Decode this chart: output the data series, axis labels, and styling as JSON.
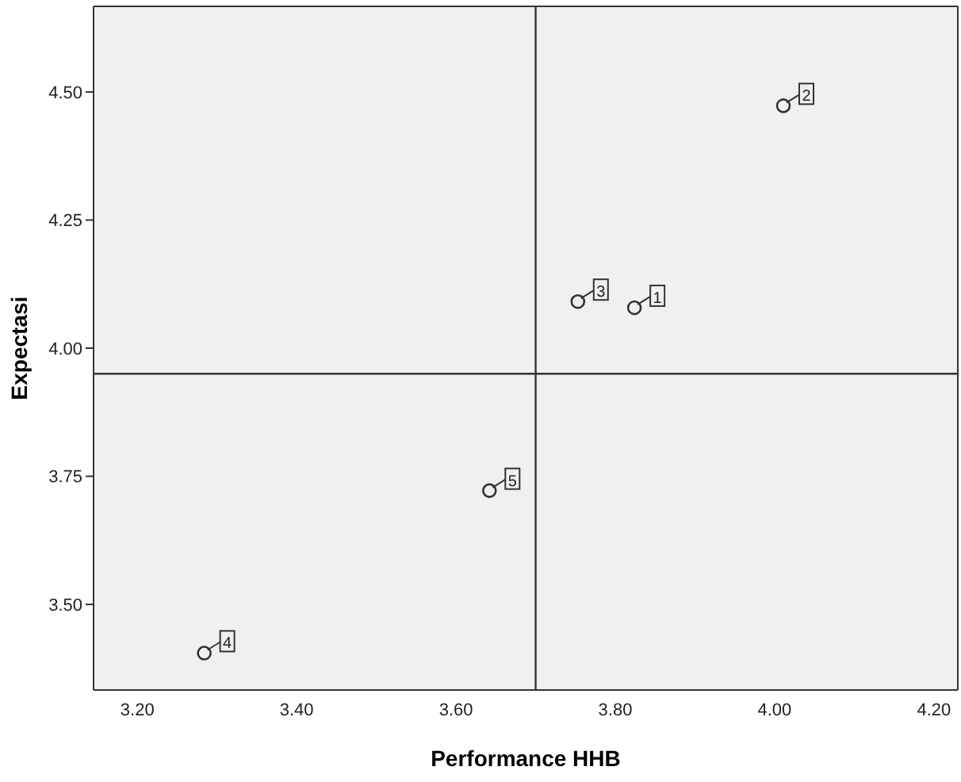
{
  "chart_data": {
    "type": "scatter",
    "xlabel": "Performance HHB",
    "ylabel": "Expectasi",
    "x": [
      3.824,
      4.011,
      3.753,
      3.284,
      3.642
    ],
    "values": [
      4.079,
      4.473,
      4.091,
      3.405,
      3.722
    ],
    "annotations": [
      {
        "text": "1",
        "x": 3.824,
        "y": 4.079
      },
      {
        "text": "2",
        "x": 4.011,
        "y": 4.473
      },
      {
        "text": "3",
        "x": 3.753,
        "y": 4.091
      },
      {
        "text": "4",
        "x": 3.284,
        "y": 3.405
      },
      {
        "text": "5",
        "x": 3.642,
        "y": 3.722
      }
    ],
    "color": "#333333",
    "marker": "circle",
    "grid": false,
    "xlim": [
      3.145,
      4.23
    ],
    "xticks": [
      {
        "value": 3.2,
        "label": "3.20"
      },
      {
        "value": 3.4,
        "label": "3.40"
      },
      {
        "value": 3.6,
        "label": "3.60"
      },
      {
        "value": 3.8,
        "label": "3.80"
      },
      {
        "value": 4.0,
        "label": "4.00"
      },
      {
        "value": 4.2,
        "label": "4.20"
      }
    ],
    "ylim": [
      3.333,
      4.667
    ],
    "yticks": [
      {
        "value": 3.5,
        "label": "3.50"
      },
      {
        "value": 3.75,
        "label": "3.75"
      },
      {
        "value": 4.0,
        "label": "4.00"
      },
      {
        "value": 4.25,
        "label": "4.25"
      },
      {
        "value": 4.5,
        "label": "4.50"
      }
    ],
    "ref_lines": [
      {
        "axis": "x",
        "value": 3.7
      },
      {
        "axis": "y",
        "value": 3.95
      }
    ]
  }
}
